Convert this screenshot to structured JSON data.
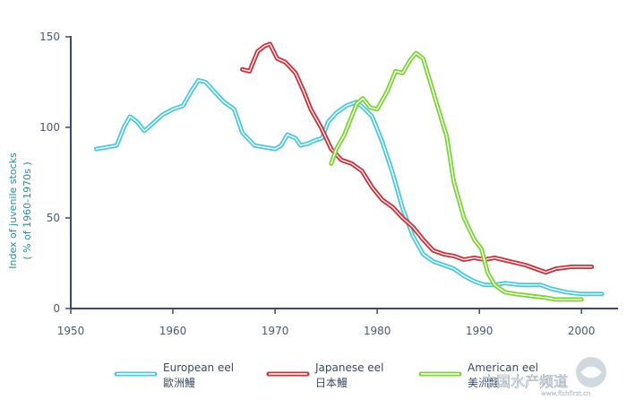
{
  "chart_data": {
    "type": "line",
    "title": "",
    "xlabel": "",
    "ylabel": "Index of juvenile stocks",
    "ylabel_sub": "( % of 1960-1970s )",
    "xlim": [
      1950,
      2002
    ],
    "ylim": [
      0,
      150
    ],
    "x_ticks": [
      1950,
      1960,
      1970,
      1980,
      1990,
      2000
    ],
    "y_ticks": [
      0,
      50,
      100,
      150
    ],
    "grid": false,
    "legend_position": "bottom",
    "series": [
      {
        "name": "European eel",
        "name_zh": "歐洲鰻",
        "color": "#4ec8d8",
        "points": [
          [
            1952.5,
            88
          ],
          [
            1953.5,
            89
          ],
          [
            1954.5,
            90
          ],
          [
            1955.2,
            100
          ],
          [
            1955.8,
            106
          ],
          [
            1956.5,
            103
          ],
          [
            1957.2,
            98
          ],
          [
            1958,
            102
          ],
          [
            1959,
            107
          ],
          [
            1960,
            110
          ],
          [
            1961,
            112
          ],
          [
            1961.8,
            120
          ],
          [
            1962.5,
            126
          ],
          [
            1963.2,
            125
          ],
          [
            1964,
            120
          ],
          [
            1965,
            114
          ],
          [
            1966,
            110
          ],
          [
            1966.8,
            97
          ],
          [
            1968,
            90
          ],
          [
            1969,
            89
          ],
          [
            1970,
            88
          ],
          [
            1970.6,
            90
          ],
          [
            1971.2,
            96
          ],
          [
            1972,
            94
          ],
          [
            1972.5,
            90
          ],
          [
            1973.2,
            91
          ],
          [
            1974,
            93
          ],
          [
            1974.6,
            94
          ],
          [
            1975.2,
            103
          ],
          [
            1976,
            108
          ],
          [
            1977,
            112
          ],
          [
            1978,
            114
          ],
          [
            1978.8,
            110
          ],
          [
            1979.5,
            106
          ],
          [
            1980.5,
            92
          ],
          [
            1981.5,
            75
          ],
          [
            1982.5,
            55
          ],
          [
            1983.5,
            40
          ],
          [
            1984.5,
            30
          ],
          [
            1985.5,
            26
          ],
          [
            1986.5,
            24
          ],
          [
            1987.5,
            22
          ],
          [
            1988.5,
            18
          ],
          [
            1989.5,
            15
          ],
          [
            1990.5,
            13
          ],
          [
            1991.5,
            13
          ],
          [
            1992.5,
            14
          ],
          [
            1994,
            13
          ],
          [
            1996,
            13
          ],
          [
            1997,
            11
          ],
          [
            1998.5,
            9
          ],
          [
            2000,
            8
          ],
          [
            2002,
            8
          ]
        ]
      },
      {
        "name": "Japanese eel",
        "name_zh": "日本鰻",
        "color": "#c8323a",
        "points": [
          [
            1966.8,
            132
          ],
          [
            1967.5,
            131
          ],
          [
            1968.3,
            142
          ],
          [
            1969,
            145
          ],
          [
            1969.5,
            146
          ],
          [
            1970.2,
            138
          ],
          [
            1971,
            136
          ],
          [
            1972,
            130
          ],
          [
            1972.8,
            120
          ],
          [
            1973.5,
            110
          ],
          [
            1974.5,
            100
          ],
          [
            1975.5,
            88
          ],
          [
            1976.5,
            82
          ],
          [
            1977.5,
            80
          ],
          [
            1978.5,
            76
          ],
          [
            1979.5,
            67
          ],
          [
            1980.5,
            60
          ],
          [
            1981.5,
            56
          ],
          [
            1982.5,
            50
          ],
          [
            1983.5,
            45
          ],
          [
            1984.5,
            38
          ],
          [
            1985.5,
            32
          ],
          [
            1986.5,
            30
          ],
          [
            1987.5,
            29
          ],
          [
            1988.5,
            27
          ],
          [
            1989.5,
            28
          ],
          [
            1990.5,
            27
          ],
          [
            1991.5,
            28
          ],
          [
            1993,
            26
          ],
          [
            1994.5,
            24
          ],
          [
            1995.5,
            22
          ],
          [
            1996.5,
            20
          ],
          [
            1997.5,
            22
          ],
          [
            1999,
            23
          ],
          [
            2001,
            23
          ]
        ]
      },
      {
        "name": "American eel",
        "name_zh": "美洲鰻",
        "color": "#7ed23a",
        "points": [
          [
            1975.5,
            80
          ],
          [
            1976,
            88
          ],
          [
            1976.8,
            96
          ],
          [
            1977.5,
            106
          ],
          [
            1978,
            113
          ],
          [
            1978.6,
            116
          ],
          [
            1979.3,
            111
          ],
          [
            1980,
            110
          ],
          [
            1981,
            120
          ],
          [
            1981.8,
            131
          ],
          [
            1982.5,
            130
          ],
          [
            1983.2,
            137
          ],
          [
            1983.8,
            141
          ],
          [
            1984.5,
            138
          ],
          [
            1985.2,
            125
          ],
          [
            1986,
            110
          ],
          [
            1986.8,
            95
          ],
          [
            1987.5,
            70
          ],
          [
            1988.5,
            50
          ],
          [
            1989.5,
            38
          ],
          [
            1990.2,
            33
          ],
          [
            1990.8,
            20
          ],
          [
            1991.5,
            13
          ],
          [
            1992.5,
            9
          ],
          [
            1993.5,
            8
          ],
          [
            1995,
            7
          ],
          [
            1996.5,
            6
          ],
          [
            1997.5,
            5
          ],
          [
            2000,
            5
          ]
        ]
      }
    ]
  },
  "watermark": {
    "text": "中国水产频道",
    "url_text": "www.fishfirst.cn"
  }
}
